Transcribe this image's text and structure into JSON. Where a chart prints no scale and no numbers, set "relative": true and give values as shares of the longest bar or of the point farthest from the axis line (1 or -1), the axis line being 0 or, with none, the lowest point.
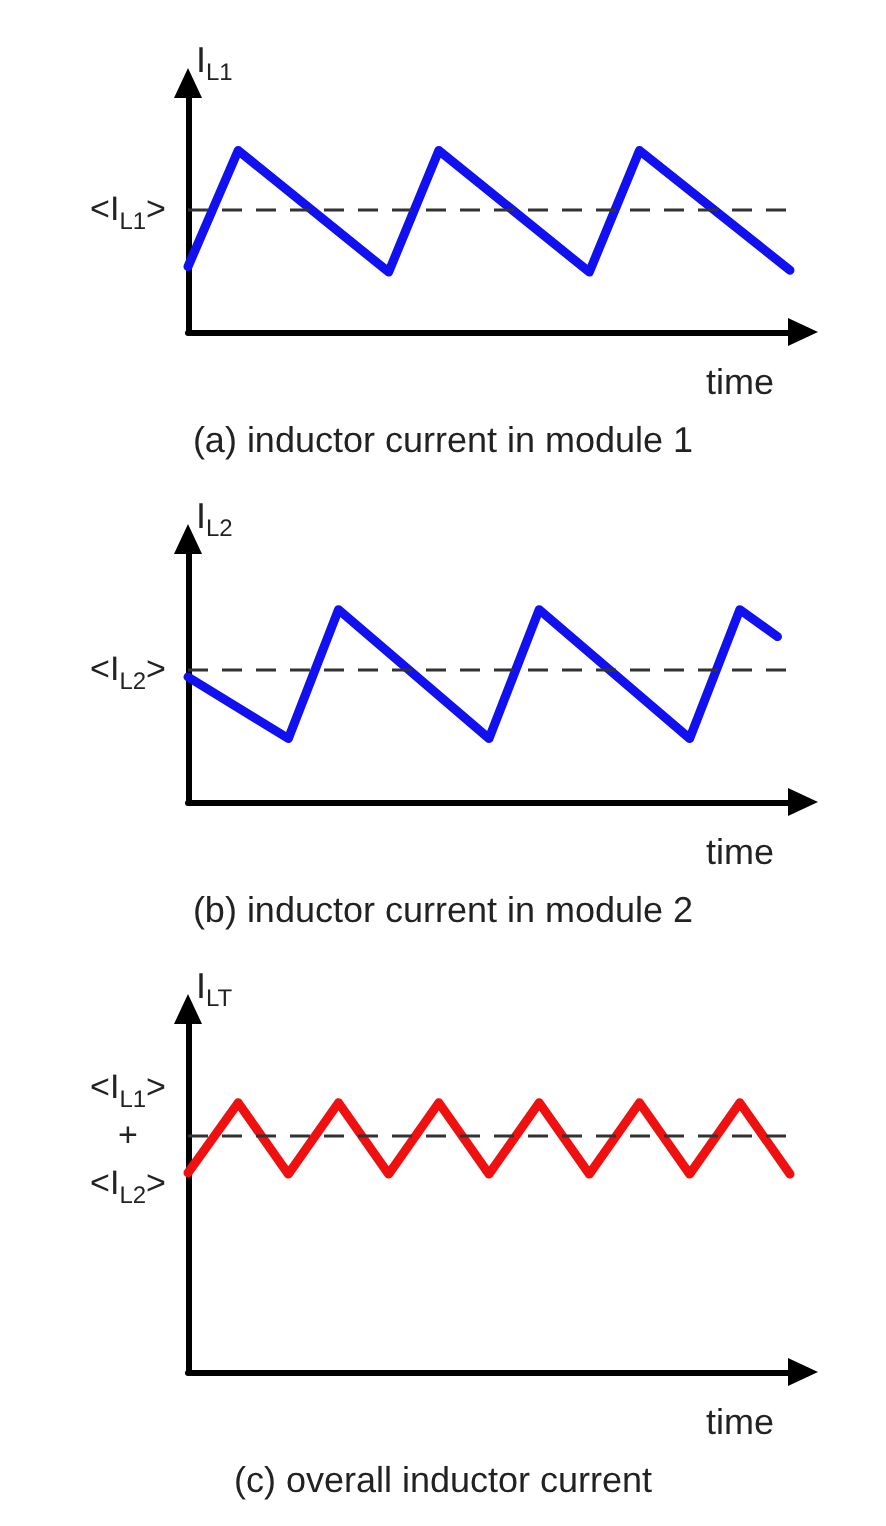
{
  "chart_data": [
    {
      "type": "line",
      "title": "(a) inductor current in module 1",
      "xlabel": "time",
      "ylabel": "I$_{L1}$",
      "relative": true,
      "marker": "none",
      "line_style": "solid",
      "categories": [
        null,
        null,
        null,
        null,
        null,
        null,
        null,
        null,
        null,
        null,
        null,
        null,
        null
      ],
      "series": [
        {
          "color": "#1010f0",
          "values": [
            0.36,
            1,
            null,
            null,
            0.33,
            1,
            null,
            null,
            0.33,
            1,
            null,
            null,
            0.34
          ]
        }
      ],
      "ref_lines": [
        {
          "axis": "y",
          "value": 0.68,
          "label": "<I$_{L1}$>",
          "color": "#333333",
          "line_style": "dashed"
        }
      ]
    },
    {
      "type": "line",
      "title": "(b) inductor current in module 2",
      "xlabel": "time",
      "ylabel": "I$_{L2}$",
      "relative": true,
      "marker": "none",
      "line_style": "solid",
      "categories": [
        null,
        null,
        null,
        null,
        null,
        null,
        null,
        null,
        null,
        null,
        null,
        null,
        null,
        null,
        null,
        null,
        null,
        null,
        null,
        null,
        null,
        null,
        null,
        null,
        null,
        null,
        null,
        null,
        null,
        null,
        null,
        null,
        null,
        null,
        null,
        null,
        null,
        null,
        null,
        null,
        null,
        null,
        null,
        null,
        null,
        null,
        null,
        null,
        null
      ],
      "series": [
        {
          "color": "#1010f0",
          "values": [
            0.65,
            null,
            null,
            null,
            null,
            null,
            null,
            null,
            0.33,
            null,
            null,
            null,
            1,
            null,
            null,
            null,
            null,
            null,
            null,
            null,
            null,
            null,
            null,
            null,
            0.33,
            null,
            null,
            null,
            1,
            null,
            null,
            null,
            null,
            null,
            null,
            null,
            null,
            null,
            null,
            null,
            0.33,
            null,
            null,
            null,
            1,
            null,
            null,
            0.86,
            null
          ]
        }
      ],
      "ref_lines": [
        {
          "axis": "y",
          "value": 0.69,
          "label": "<I$_{L2}$>",
          "color": "#333333",
          "line_style": "dashed"
        }
      ]
    },
    {
      "type": "line",
      "title": "(c) overall inductor current",
      "xlabel": "time",
      "ylabel": "I$_{LT}$",
      "relative": true,
      "marker": "none",
      "line_style": "solid",
      "categories": [
        null,
        null,
        null,
        null,
        null,
        null,
        null,
        null,
        null,
        null,
        null,
        null,
        null
      ],
      "series": [
        {
          "color": "#f01010",
          "values": [
            0.74,
            1,
            0.735,
            1,
            0.735,
            1,
            0.735,
            1,
            0.735,
            1,
            0.735,
            1,
            0.735
          ]
        }
      ],
      "ref_lines": [
        {
          "axis": "y",
          "value": 0.88,
          "label": "<I$_{L1}$>\n+\n<I$_{L2}$>",
          "color": "#333333",
          "line_style": "dashed"
        }
      ]
    }
  ]
}
